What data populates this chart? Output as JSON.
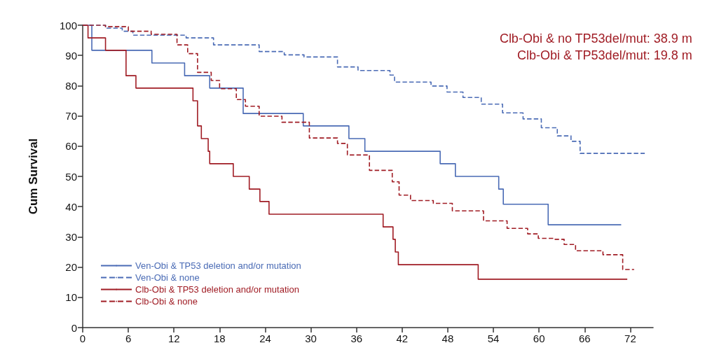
{
  "chart_data": {
    "type": "step",
    "ylabel": "Cum Survival",
    "xlim": [
      0,
      75
    ],
    "ylim": [
      0,
      100
    ],
    "xticks": [
      0,
      6,
      12,
      18,
      24,
      30,
      36,
      42,
      48,
      54,
      60,
      66,
      72
    ],
    "yticks": [
      0,
      10,
      20,
      30,
      40,
      50,
      60,
      70,
      80,
      90,
      100
    ],
    "grid": false,
    "legend": "bottom left",
    "marker": "none",
    "annotations": [
      "Clb-Obi & no TP53del/mut: 38.9 m",
      "Clb-Obi & TP53del/mut: 19.8 m"
    ],
    "series": [
      {
        "name": "Ven-Obi & TP53 deletion and/or mutation",
        "color": "#4a6bb5",
        "line_style": "solid",
        "x": [
          0,
          1.2,
          9.1,
          13.4,
          16.7,
          21.1,
          29,
          35,
          37.1,
          47,
          49,
          54.7,
          55.3,
          61.2,
          70.8
        ],
        "values": [
          100,
          91.7,
          87.5,
          83.3,
          79.2,
          70.8,
          66.7,
          62.5,
          58.3,
          54.2,
          50,
          45.8,
          40.8,
          34,
          34
        ]
      },
      {
        "name": "Ven-Obi & none",
        "color": "#4a6bb5",
        "line_style": "dashed",
        "x": [
          0,
          3,
          5.2,
          6.6,
          13.6,
          17.2,
          23.2,
          26.5,
          29.1,
          33.5,
          36.2,
          40.4,
          41,
          45.8,
          47.9,
          50,
          52.4,
          55.2,
          57.9,
          60.3,
          62.4,
          64.2,
          65.4,
          73.9
        ],
        "values": [
          100,
          99,
          98,
          96.7,
          95.8,
          93.5,
          91.3,
          90.2,
          89.5,
          86.2,
          85,
          83.5,
          81.2,
          79.9,
          77.9,
          76.1,
          73.9,
          71,
          69,
          66.1,
          63.4,
          61.6,
          57.6,
          57.6
        ]
      },
      {
        "name": "Clb-Obi & TP53 deletion and/or mutation",
        "color": "#a01c24",
        "line_style": "solid",
        "x": [
          0,
          0.7,
          3,
          5.7,
          7,
          14.5,
          15.1,
          15.6,
          16.5,
          16.7,
          19.8,
          21.9,
          23.3,
          24.5,
          39.5,
          40.8,
          41.1,
          41.5,
          52,
          71.6
        ],
        "values": [
          100,
          95.8,
          91.7,
          83.3,
          79.2,
          75,
          66.7,
          62.5,
          58.3,
          54.2,
          50,
          45.8,
          41.7,
          37.5,
          33.3,
          29.2,
          25,
          20.8,
          16,
          16
        ]
      },
      {
        "name": "Clb-Obi & none",
        "color": "#a01c24",
        "line_style": "dashed",
        "x": [
          0,
          3,
          6,
          9,
          12.4,
          13.8,
          15.1,
          16.9,
          18,
          20.2,
          21.4,
          23.2,
          26.2,
          29.8,
          33.5,
          34.8,
          37.7,
          40.7,
          41.6,
          43.1,
          46.1,
          48.6,
          51.5,
          52.7,
          55.8,
          58.5,
          59.9,
          62.1,
          63.3,
          64.8,
          68.4,
          71,
          72.5
        ],
        "values": [
          100,
          99.5,
          98,
          97,
          93.5,
          90.6,
          84.4,
          81.7,
          79,
          75.4,
          73.2,
          69.9,
          67.9,
          62.7,
          60.9,
          57.1,
          52,
          48.2,
          43.8,
          42,
          41.1,
          38.6,
          38.6,
          35.3,
          32.8,
          31,
          29.5,
          29.2,
          27.5,
          25.4,
          24.1,
          19.2,
          19.2
        ]
      }
    ]
  }
}
